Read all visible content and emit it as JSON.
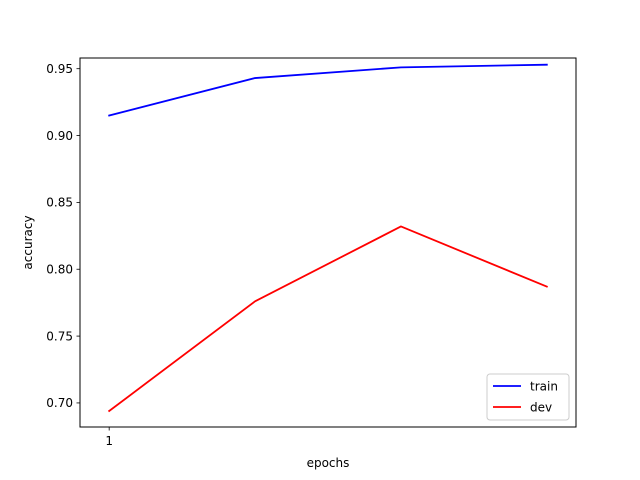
{
  "chart_data": {
    "type": "line",
    "title": "",
    "xlabel": "epochs",
    "ylabel": "accuracy",
    "x": [
      1,
      2,
      3,
      4
    ],
    "x_tick_labels": [
      "1"
    ],
    "ylim": [
      0.682,
      0.958
    ],
    "y_ticks": [
      0.7,
      0.75,
      0.8,
      0.85,
      0.9,
      0.95
    ],
    "y_tick_labels": [
      "0.70",
      "0.75",
      "0.80",
      "0.85",
      "0.90",
      "0.95"
    ],
    "grid": false,
    "legend_position": "bottom-right",
    "series": [
      {
        "name": "train",
        "color": "#0000ff",
        "values": [
          0.915,
          0.943,
          0.951,
          0.953
        ]
      },
      {
        "name": "dev",
        "color": "#ff0000",
        "values": [
          0.694,
          0.776,
          0.832,
          0.787
        ]
      }
    ]
  }
}
